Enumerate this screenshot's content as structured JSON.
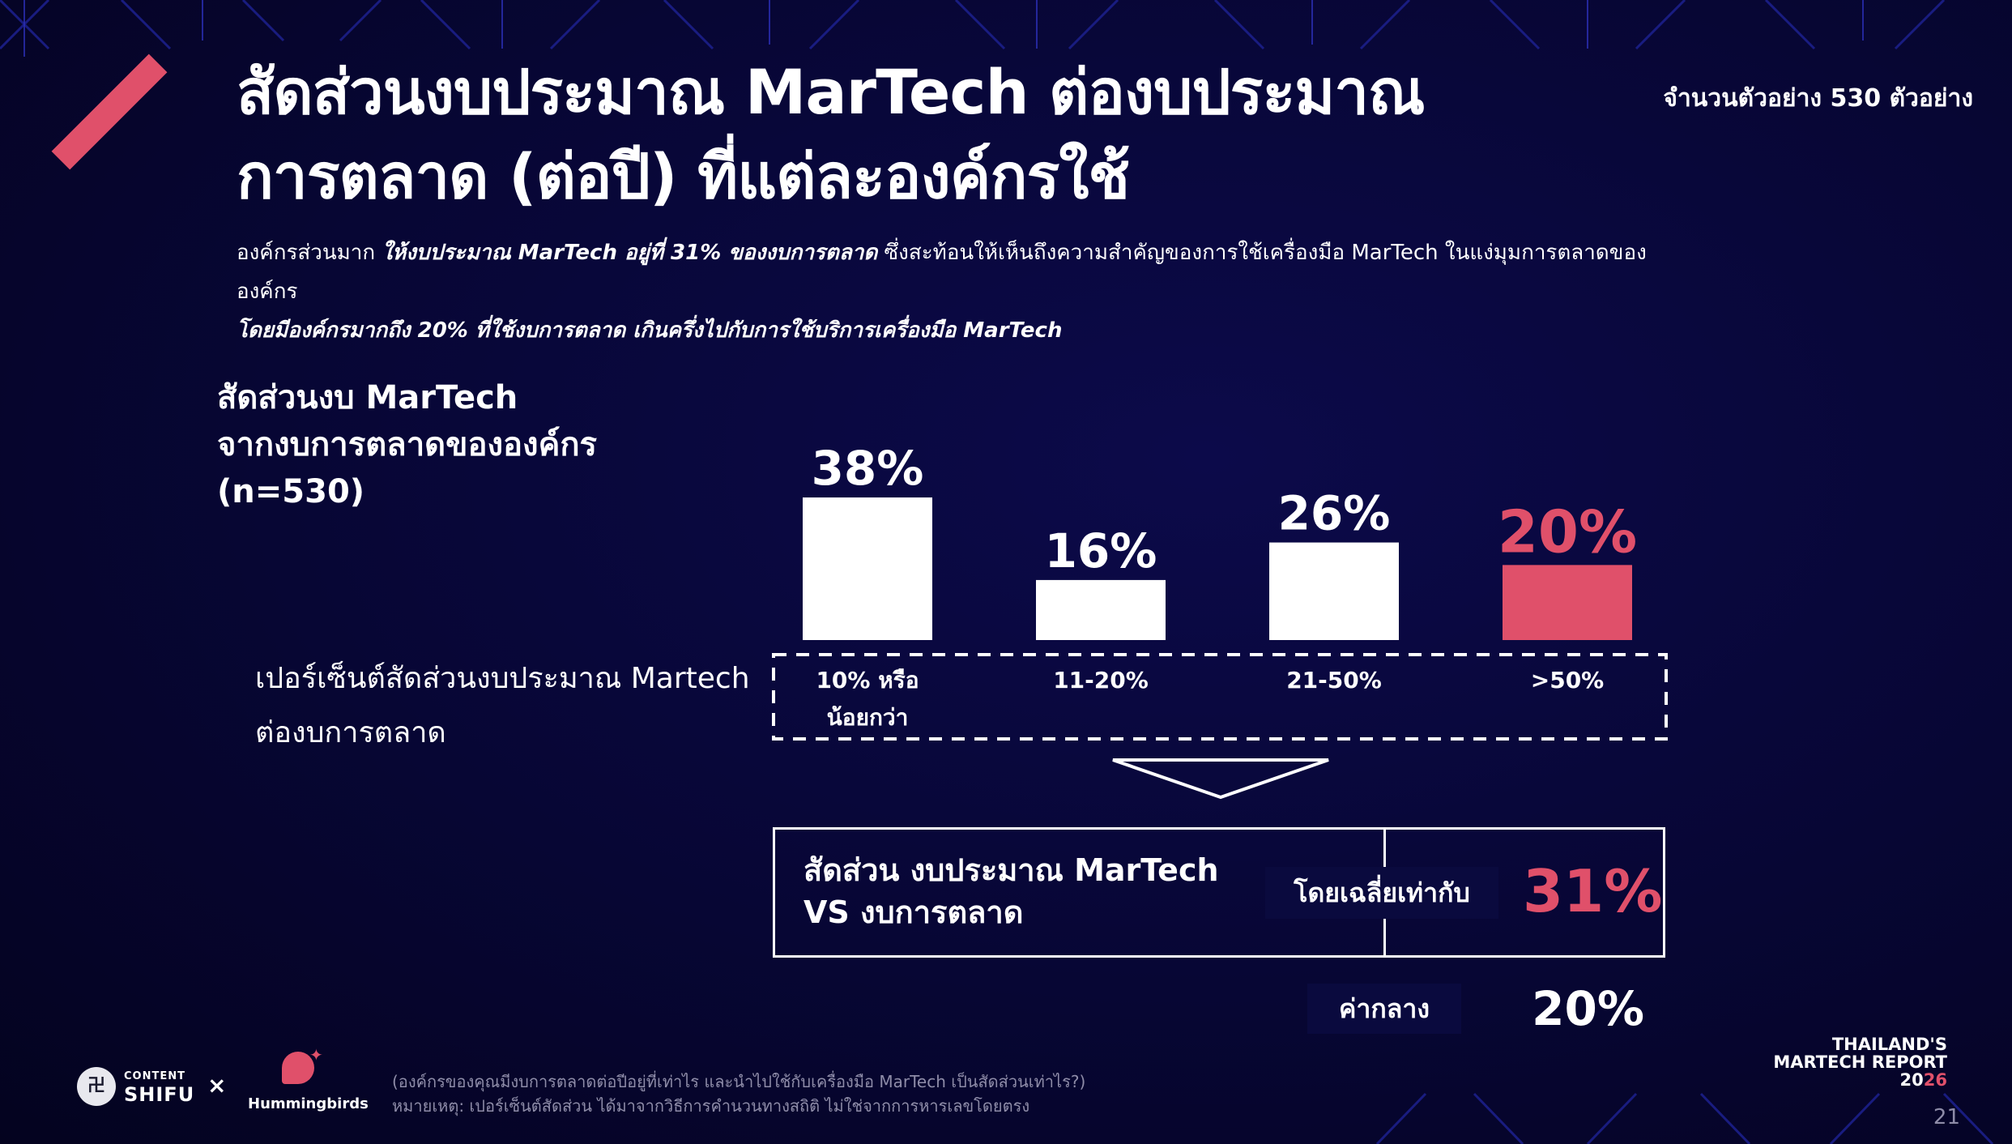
{
  "header": {
    "title_line1": "สัดส่วนงบประมาณ MarTech ต่องบประมาณ",
    "title_line2": "การตลาด (ต่อปี) ที่แต่ละองค์กรใช้",
    "sample_size": "จำนวนตัวอย่าง 530 ตัวอย่าง"
  },
  "subtitle": {
    "l1_a": "องค์กรส่วนมาก ",
    "l1_b": "ให้งบประมาณ MarTech อยู่ที่ 31% ของงบการตลาด",
    "l1_c": "  ซึ่งสะท้อนให้เห็นถึงความสำคัญของการใช้เครื่องมือ MarTech ในแง่มุมการตลาดขององค์กร",
    "l2": "โดยมีองค์กรมากถึง 20% ที่ใช้งบการตลาด เกินครึ่งไปกับการใช้บริการเครื่องมือ MarTech"
  },
  "chart_heading": {
    "line1": "สัดส่วนงบ MarTech",
    "line2": "จากงบการตลาดขององค์กร",
    "line3": "(n=530)"
  },
  "axis_caption": {
    "line1": "เปอร์เซ็นต์สัดส่วนงบประมาณ Martech",
    "line2": "ต่องบการตลาด"
  },
  "chart_data": {
    "type": "bar",
    "title": "สัดส่วนงบ MarTech จากงบการตลาดขององค์กร (n=530)",
    "xlabel": "เปอร์เซ็นต์สัดส่วนงบประมาณ Martech ต่องบการตลาด",
    "ylabel": "",
    "categories": [
      "10% หรือ น้อยกว่า",
      "11-20%",
      "21-50%",
      ">50%"
    ],
    "category_lines": [
      [
        "10% หรือ",
        "น้อยกว่า"
      ],
      [
        "11-20%"
      ],
      [
        "21-50%"
      ],
      [
        ">50%"
      ]
    ],
    "values": [
      38,
      16,
      26,
      20
    ],
    "value_labels": [
      "38%",
      "16%",
      "26%",
      "20%"
    ],
    "highlight_index": 3,
    "ylim": [
      0,
      38
    ],
    "grid": false,
    "legend": "none"
  },
  "summary": {
    "label_line1": "สัดส่วน งบประมาณ MarTech",
    "label_line2": "VS งบการตลาด",
    "average_label": "โดยเฉลี่ยเท่ากับ",
    "average_value": "31%",
    "median_label": "ค่ากลาง",
    "median_value": "20%"
  },
  "footer": {
    "question": "(องค์กรของคุณมีงบการตลาดต่อปีอยู่ที่เท่าไร และนำไปใช้กับเครื่องมือ MarTech เป็นสัดส่วนเท่าไร?)",
    "note": "หมายเหตุ: เปอร์เซ็นต์สัดส่วน ได้มาจากวิธีการคำนวนทางสถิติ ไม่ใช่จากการหารเลขโดยตรง",
    "logo_content": "CONTENT",
    "logo_shifu": "SHIFU",
    "times": "×",
    "logo_hummingbirds": "Hummingbirds",
    "report_line1": "THAILAND'S",
    "report_line2": "MARTECH REPORT",
    "report_year_a": "20",
    "report_year_b": "26",
    "page_number": "21"
  },
  "colors": {
    "background": "#070634",
    "accent": "#e0506a",
    "bar": "#ffffff",
    "pill": "#0a0a3e"
  }
}
